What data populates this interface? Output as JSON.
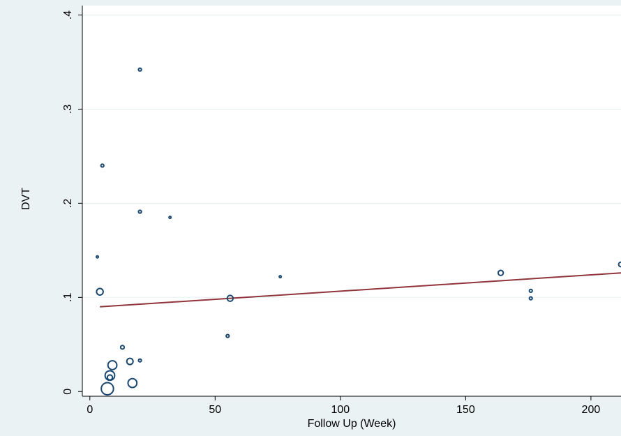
{
  "chart_data": {
    "type": "scatter",
    "xlabel": "Follow Up (Week)",
    "ylabel": "DVT",
    "xlim": [
      -3,
      212
    ],
    "ylim": [
      -0.005,
      0.41
    ],
    "x_ticks": [
      {
        "value": 0,
        "label": "0"
      },
      {
        "value": 50,
        "label": "50"
      },
      {
        "value": 100,
        "label": "100"
      },
      {
        "value": 150,
        "label": "150"
      },
      {
        "value": 200,
        "label": "200"
      }
    ],
    "y_ticks": [
      {
        "value": 0,
        "label": "0"
      },
      {
        "value": 0.1,
        "label": ".1"
      },
      {
        "value": 0.2,
        "label": ".2"
      },
      {
        "value": 0.3,
        "label": ".3"
      },
      {
        "value": 0.4,
        "label": ".4"
      }
    ],
    "grid": "horizontal",
    "marker": "hollow circle, size proportional to weight",
    "marker_color": "#1a476f",
    "fit_color": "#90353b",
    "points": [
      {
        "x": 20,
        "y": 0.342,
        "weight": 2
      },
      {
        "x": 5,
        "y": 0.24,
        "weight": 2
      },
      {
        "x": 20,
        "y": 0.191,
        "weight": 2
      },
      {
        "x": 32,
        "y": 0.185,
        "weight": 1
      },
      {
        "x": 3,
        "y": 0.143,
        "weight": 1
      },
      {
        "x": 4,
        "y": 0.106,
        "weight": 10
      },
      {
        "x": 56,
        "y": 0.099,
        "weight": 8
      },
      {
        "x": 76,
        "y": 0.122,
        "weight": 1
      },
      {
        "x": 55,
        "y": 0.059,
        "weight": 2
      },
      {
        "x": 164,
        "y": 0.126,
        "weight": 6
      },
      {
        "x": 176,
        "y": 0.107,
        "weight": 2
      },
      {
        "x": 176,
        "y": 0.099,
        "weight": 2
      },
      {
        "x": 212,
        "y": 0.135,
        "weight": 5
      },
      {
        "x": 13,
        "y": 0.047,
        "weight": 3
      },
      {
        "x": 16,
        "y": 0.032,
        "weight": 9
      },
      {
        "x": 20,
        "y": 0.033,
        "weight": 2
      },
      {
        "x": 9,
        "y": 0.028,
        "weight": 18
      },
      {
        "x": 8,
        "y": 0.017,
        "weight": 21
      },
      {
        "x": 8,
        "y": 0.015,
        "weight": 6
      },
      {
        "x": 17,
        "y": 0.009,
        "weight": 18
      },
      {
        "x": 7,
        "y": 0.003,
        "weight": 34
      }
    ],
    "fit_line": [
      {
        "x": 4,
        "y": 0.09
      },
      {
        "x": 212,
        "y": 0.126
      }
    ]
  }
}
